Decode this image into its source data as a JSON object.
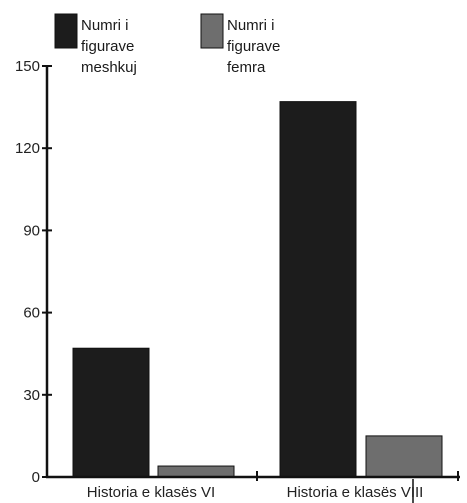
{
  "chart_data": {
    "type": "bar",
    "categories": [
      "Historia e klasës VI",
      "Historia e klasës VIII"
    ],
    "series": [
      {
        "name": "Numri i figurave meshkuj",
        "values": [
          47,
          137
        ],
        "color": "#1c1c1c"
      },
      {
        "name": "Numri i figurave femra",
        "values": [
          4,
          15
        ],
        "color": "#6e6e6e"
      }
    ],
    "legend": [
      {
        "lines": [
          "Numri i",
          "figurave",
          "meshkuj"
        ],
        "color": "#1c1c1c"
      },
      {
        "lines": [
          "Numri i",
          "figurave",
          "femra"
        ],
        "color": "#6e6e6e"
      }
    ],
    "yticks": [
      0,
      30,
      60,
      90,
      120,
      150
    ],
    "ylim": [
      0,
      150
    ],
    "grid": false,
    "legend_position": "top-left"
  }
}
